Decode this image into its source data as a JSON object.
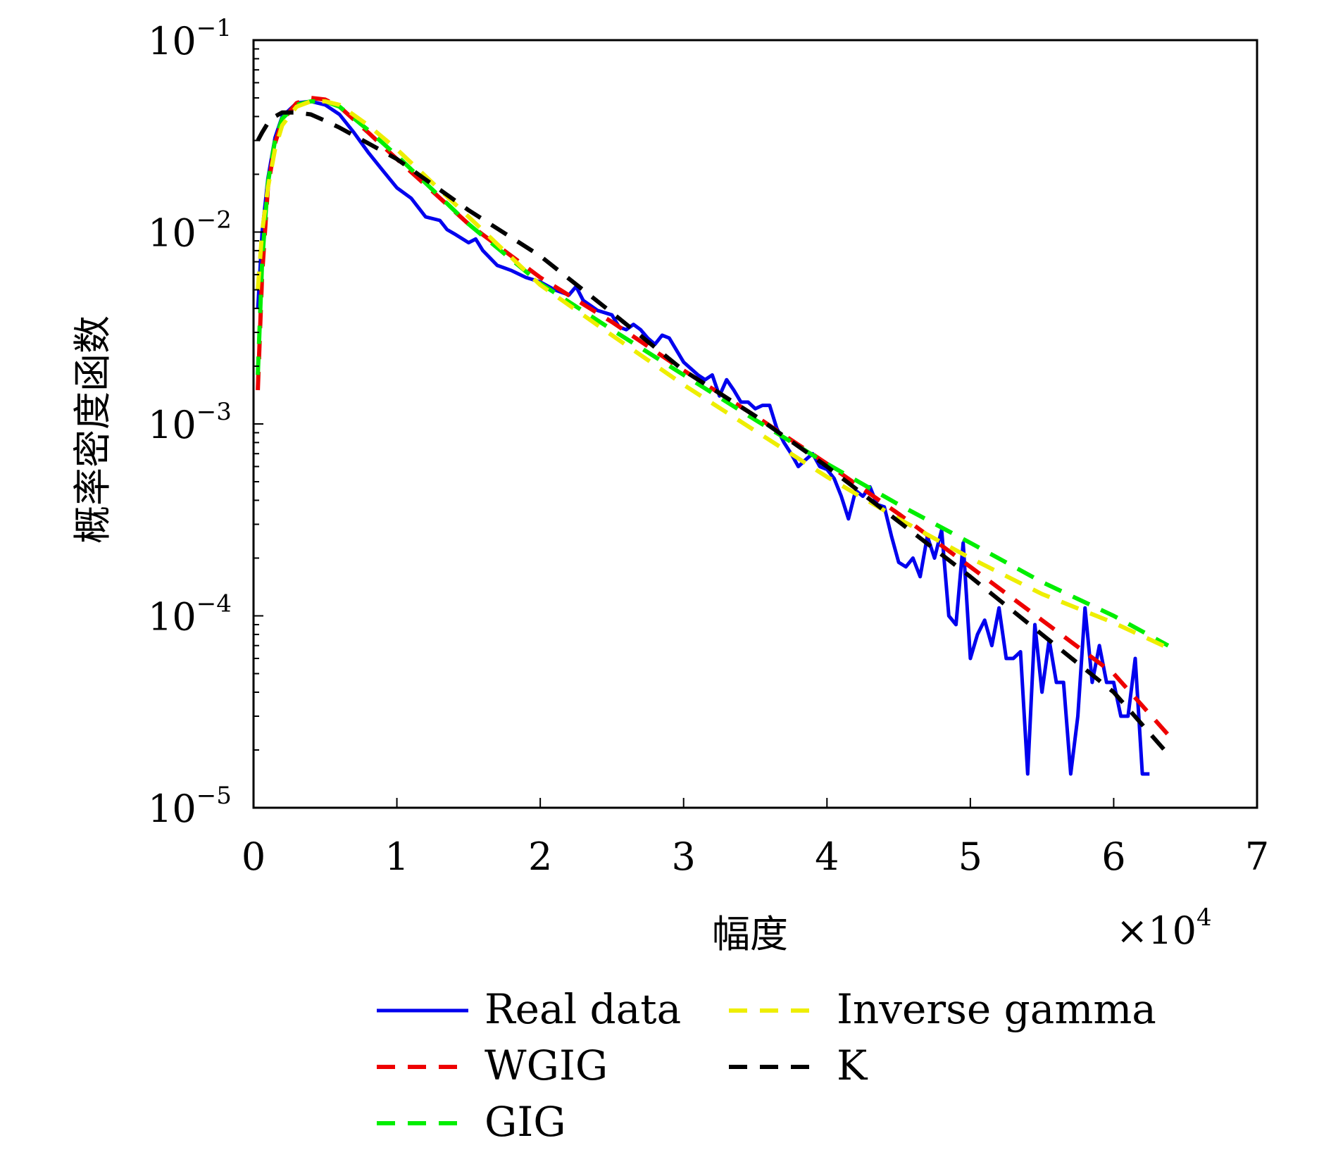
{
  "chart_data": {
    "type": "line",
    "title": "",
    "xlabel": "幅度",
    "ylabel": "概率密度函数",
    "x_multiplier_label": "×10",
    "x_multiplier_exponent": "4",
    "xlim": [
      0,
      7
    ],
    "ylim": [
      1e-05,
      0.1
    ],
    "yscale": "log",
    "grid": false,
    "legend_position": "bottom, outside plot",
    "x_ticks": [
      "0",
      "1",
      "2",
      "3",
      "4",
      "5",
      "6",
      "7"
    ],
    "y_ticks": [
      {
        "base": "10",
        "exp": "−1",
        "value": 0.1
      },
      {
        "base": "10",
        "exp": "−2",
        "value": 0.01
      },
      {
        "base": "10",
        "exp": "−3",
        "value": 0.001
      },
      {
        "base": "10",
        "exp": "−4",
        "value": 0.0001
      },
      {
        "base": "10",
        "exp": "−5",
        "value": 1e-05
      }
    ],
    "series": [
      {
        "name": "Real data",
        "color": "#0000ee",
        "style": "solid",
        "x": [
          0.03,
          0.06,
          0.1,
          0.15,
          0.2,
          0.3,
          0.4,
          0.5,
          0.6,
          0.7,
          0.8,
          0.9,
          1.0,
          1.1,
          1.2,
          1.3,
          1.35,
          1.4,
          1.5,
          1.55,
          1.6,
          1.7,
          1.75,
          1.8,
          1.9,
          2.0,
          2.1,
          2.2,
          2.25,
          2.3,
          2.4,
          2.5,
          2.55,
          2.6,
          2.65,
          2.7,
          2.75,
          2.8,
          2.85,
          2.9,
          3.0,
          3.1,
          3.15,
          3.2,
          3.25,
          3.3,
          3.35,
          3.4,
          3.45,
          3.5,
          3.55,
          3.6,
          3.65,
          3.7,
          3.75,
          3.8,
          3.85,
          3.9,
          3.95,
          4.0,
          4.05,
          4.1,
          4.15,
          4.2,
          4.25,
          4.3,
          4.35,
          4.4,
          4.45,
          4.5,
          4.55,
          4.6,
          4.65,
          4.7,
          4.75,
          4.8,
          4.85,
          4.9,
          4.95,
          5.0,
          5.05,
          5.1,
          5.15,
          5.2,
          5.25,
          5.3,
          5.35,
          5.4,
          5.45,
          5.5,
          5.55,
          5.6,
          5.65,
          5.7,
          5.75,
          5.8,
          5.85,
          5.9,
          5.95,
          6.0,
          6.05,
          6.1,
          6.15,
          6.2,
          6.25
        ],
        "y": [
          0.004,
          0.01,
          0.019,
          0.031,
          0.04,
          0.047,
          0.048,
          0.046,
          0.041,
          0.033,
          0.026,
          0.021,
          0.017,
          0.015,
          0.012,
          0.0115,
          0.0103,
          0.0098,
          0.0088,
          0.0092,
          0.008,
          0.0067,
          0.0065,
          0.0063,
          0.0058,
          0.0055,
          0.005,
          0.0047,
          0.0052,
          0.0044,
          0.0039,
          0.0037,
          0.0032,
          0.0031,
          0.0033,
          0.0031,
          0.0028,
          0.0026,
          0.0029,
          0.0028,
          0.0021,
          0.0018,
          0.0017,
          0.0018,
          0.0014,
          0.0017,
          0.0015,
          0.0013,
          0.0013,
          0.0012,
          0.00125,
          0.00125,
          0.00095,
          0.0008,
          0.0007,
          0.0006,
          0.00065,
          0.0007,
          0.0006,
          0.00058,
          0.00052,
          0.00042,
          0.00032,
          0.00045,
          0.00042,
          0.00047,
          0.00038,
          0.00037,
          0.00026,
          0.00019,
          0.00018,
          0.0002,
          0.00016,
          0.00026,
          0.0002,
          0.00028,
          0.0001,
          9e-05,
          0.00024,
          6e-05,
          8e-05,
          9.5e-05,
          7e-05,
          0.00011,
          6e-05,
          6e-05,
          6.5e-05,
          1.5e-05,
          9e-05,
          4e-05,
          7.5e-05,
          4.5e-05,
          4.5e-05,
          1.5e-05,
          3e-05,
          0.00011,
          4.5e-05,
          7e-05,
          4.5e-05,
          4.5e-05,
          3e-05,
          3e-05,
          6e-05,
          1.5e-05,
          1.5e-05
        ]
      },
      {
        "name": "WGIG",
        "color": "#ee0000",
        "style": "dashed",
        "x": [
          0.03,
          0.06,
          0.1,
          0.15,
          0.2,
          0.3,
          0.4,
          0.5,
          0.6,
          0.8,
          1.0,
          1.5,
          2.0,
          2.5,
          3.0,
          3.5,
          4.0,
          4.5,
          5.0,
          5.5,
          6.0,
          6.38
        ],
        "y": [
          0.0015,
          0.006,
          0.017,
          0.029,
          0.038,
          0.047,
          0.05,
          0.049,
          0.045,
          0.033,
          0.024,
          0.011,
          0.0058,
          0.0034,
          0.0019,
          0.0011,
          0.00062,
          0.00034,
          0.00018,
          9.5e-05,
          5e-05,
          2.4e-05
        ]
      },
      {
        "name": "GIG",
        "color": "#00ee00",
        "style": "dashed",
        "x": [
          0.03,
          0.06,
          0.1,
          0.15,
          0.2,
          0.3,
          0.4,
          0.5,
          0.6,
          0.8,
          1.0,
          1.5,
          2.0,
          2.5,
          3.0,
          3.5,
          4.0,
          4.5,
          5.0,
          5.5,
          6.0,
          6.38
        ],
        "y": [
          0.0018,
          0.007,
          0.018,
          0.03,
          0.039,
          0.046,
          0.048,
          0.048,
          0.045,
          0.034,
          0.025,
          0.011,
          0.0054,
          0.0031,
          0.0018,
          0.00105,
          0.00062,
          0.00038,
          0.00024,
          0.00015,
          0.0001,
          7e-05
        ]
      },
      {
        "name": "Inverse gamma",
        "color": "#eeee00",
        "style": "dashed",
        "x": [
          0.03,
          0.06,
          0.1,
          0.15,
          0.2,
          0.3,
          0.4,
          0.5,
          0.6,
          0.8,
          1.0,
          1.5,
          2.0,
          2.5,
          3.0,
          3.5,
          4.0,
          4.5,
          5.0,
          5.5,
          6.0,
          6.38
        ],
        "y": [
          0.005,
          0.01,
          0.017,
          0.027,
          0.036,
          0.045,
          0.048,
          0.048,
          0.046,
          0.036,
          0.027,
          0.012,
          0.0053,
          0.0029,
          0.0016,
          0.00092,
          0.00053,
          0.00032,
          0.0002,
          0.00013,
          9.2e-05,
          6.8e-05
        ]
      },
      {
        "name": "K",
        "color": "#000000",
        "style": "dashed",
        "x": [
          0.03,
          0.06,
          0.1,
          0.15,
          0.2,
          0.3,
          0.4,
          0.5,
          0.6,
          0.8,
          1.0,
          1.5,
          2.0,
          2.5,
          3.0,
          3.5,
          4.0,
          4.5,
          5.0,
          5.5,
          6.0,
          6.38
        ],
        "y": [
          0.03,
          0.033,
          0.037,
          0.04,
          0.042,
          0.042,
          0.041,
          0.038,
          0.035,
          0.029,
          0.024,
          0.013,
          0.0075,
          0.0038,
          0.0019,
          0.0011,
          0.0006,
          0.00031,
          0.00016,
          8e-05,
          4e-05,
          1.9e-05
        ]
      }
    ]
  }
}
